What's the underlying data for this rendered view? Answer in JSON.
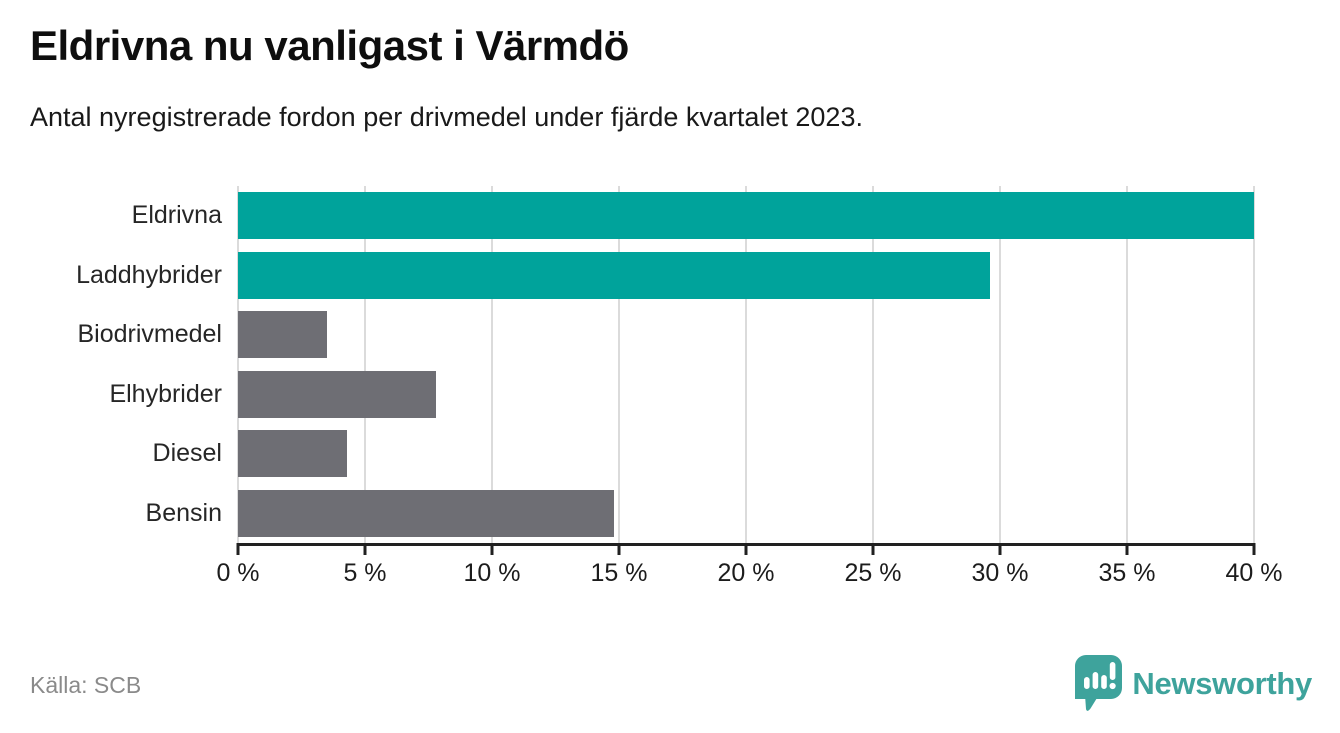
{
  "footer": {
    "source": "Källa: SCB",
    "brand": "Newsworthy"
  },
  "colors": {
    "accent_teal": "#00A39B",
    "neutral_gray": "#6E6E74",
    "gridline": "#DBDBDB",
    "axis": "#212121",
    "title_text": "#0E0E0E",
    "subtitle_text": "#191919",
    "label_text": "#262626",
    "source_text": "#8A8A8A",
    "logo_teal": "#3EA39C"
  },
  "chart_data": {
    "type": "bar",
    "orientation": "horizontal",
    "title": "Eldrivna nu vanligast i Värmdö",
    "subtitle": "Antal nyregistrerade fordon per drivmedel under fjärde kvartalet 2023.",
    "categories": [
      "Eldrivna",
      "Laddhybrider",
      "Biodrivmedel",
      "Elhybrider",
      "Diesel",
      "Bensin"
    ],
    "values": [
      40.0,
      29.6,
      3.5,
      7.8,
      4.3,
      14.8
    ],
    "value_unit": "%",
    "bar_colors": [
      "#00A39B",
      "#00A39B",
      "#6E6E74",
      "#6E6E74",
      "#6E6E74",
      "#6E6E74"
    ],
    "xlabel": "",
    "ylabel": "",
    "xlim": [
      0,
      40
    ],
    "x_ticks": [
      0,
      5,
      10,
      15,
      20,
      25,
      30,
      35,
      40
    ],
    "x_tick_labels": [
      "0 %",
      "5 %",
      "10 %",
      "15 %",
      "20 %",
      "25 %",
      "30 %",
      "35 %",
      "40 %"
    ],
    "grid": true,
    "legend": false,
    "source": "Källa: SCB"
  }
}
